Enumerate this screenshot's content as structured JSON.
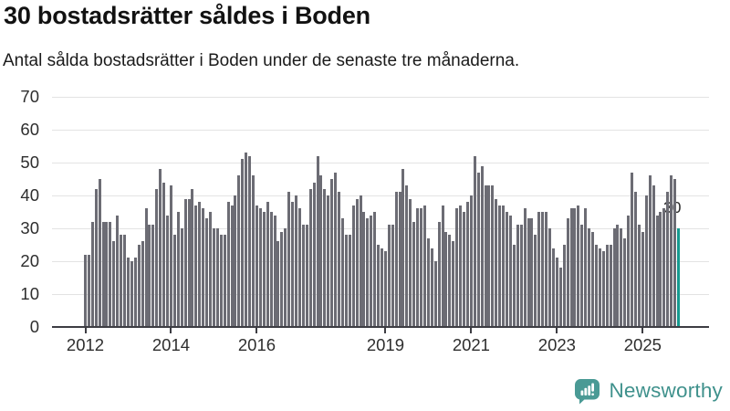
{
  "title": "30 bostadsrätter såldes i Boden",
  "subtitle": "Antal sålda bostadsrätter i Boden under de senaste tre månaderna.",
  "footer": {
    "brand": "Newsworthy",
    "logo_icon": "bar-chart-speech-bubble-icon"
  },
  "colors": {
    "bar": "#6c6c74",
    "highlight": "#169a90",
    "grid": "#e3e3e3",
    "axis": "#3d3d43",
    "brand": "#4a9a95",
    "brand_text": "#3f918c"
  },
  "chart_data": {
    "type": "bar",
    "title": "30 bostadsrätter såldes i Boden",
    "subtitle": "Antal sålda bostadsrätter i Boden under de senaste tre månaderna.",
    "frequency": "monthly",
    "start_month": "2012-01",
    "end_month": "2025-11",
    "values": [
      22,
      22,
      32,
      42,
      45,
      32,
      32,
      32,
      26,
      34,
      28,
      28,
      21,
      20,
      21,
      25,
      26,
      36,
      31,
      31,
      42,
      48,
      44,
      34,
      43,
      28,
      35,
      30,
      39,
      39,
      42,
      37,
      38,
      36,
      33,
      35,
      30,
      30,
      28,
      28,
      38,
      37,
      40,
      46,
      51,
      53,
      52,
      46,
      37,
      36,
      35,
      38,
      35,
      34,
      26,
      29,
      30,
      41,
      38,
      40,
      36,
      31,
      31,
      42,
      44,
      52,
      46,
      42,
      40,
      45,
      47,
      41,
      33,
      28,
      28,
      37,
      39,
      40,
      35,
      33,
      34,
      35,
      25,
      24,
      23,
      31,
      31,
      41,
      41,
      48,
      43,
      39,
      32,
      36,
      36,
      37,
      27,
      24,
      20,
      32,
      37,
      29,
      28,
      26,
      36,
      37,
      35,
      38,
      40,
      52,
      47,
      49,
      43,
      43,
      43,
      39,
      37,
      37,
      35,
      34,
      25,
      31,
      31,
      36,
      33,
      33,
      28,
      35,
      35,
      35,
      30,
      24,
      21,
      18,
      25,
      33,
      36,
      36,
      37,
      31,
      36,
      30,
      29,
      25,
      24,
      23,
      25,
      25,
      30,
      31,
      30,
      27,
      34,
      47,
      41,
      31,
      29,
      40,
      46,
      43,
      34,
      35,
      36,
      41,
      46,
      45,
      30
    ],
    "highlight_index": 166,
    "highlight_value": 30,
    "highlight_value_label": "30",
    "y_ticks": [
      0,
      10,
      20,
      30,
      40,
      50,
      60,
      70
    ],
    "ylim": [
      0,
      70
    ],
    "x_tick_years": [
      2012,
      2014,
      2016,
      2019,
      2021,
      2023,
      2025
    ],
    "x_tick_labels": [
      "2012",
      "2014",
      "2016",
      "2019",
      "2021",
      "2023",
      "2025"
    ],
    "grid": true,
    "legend": false
  }
}
